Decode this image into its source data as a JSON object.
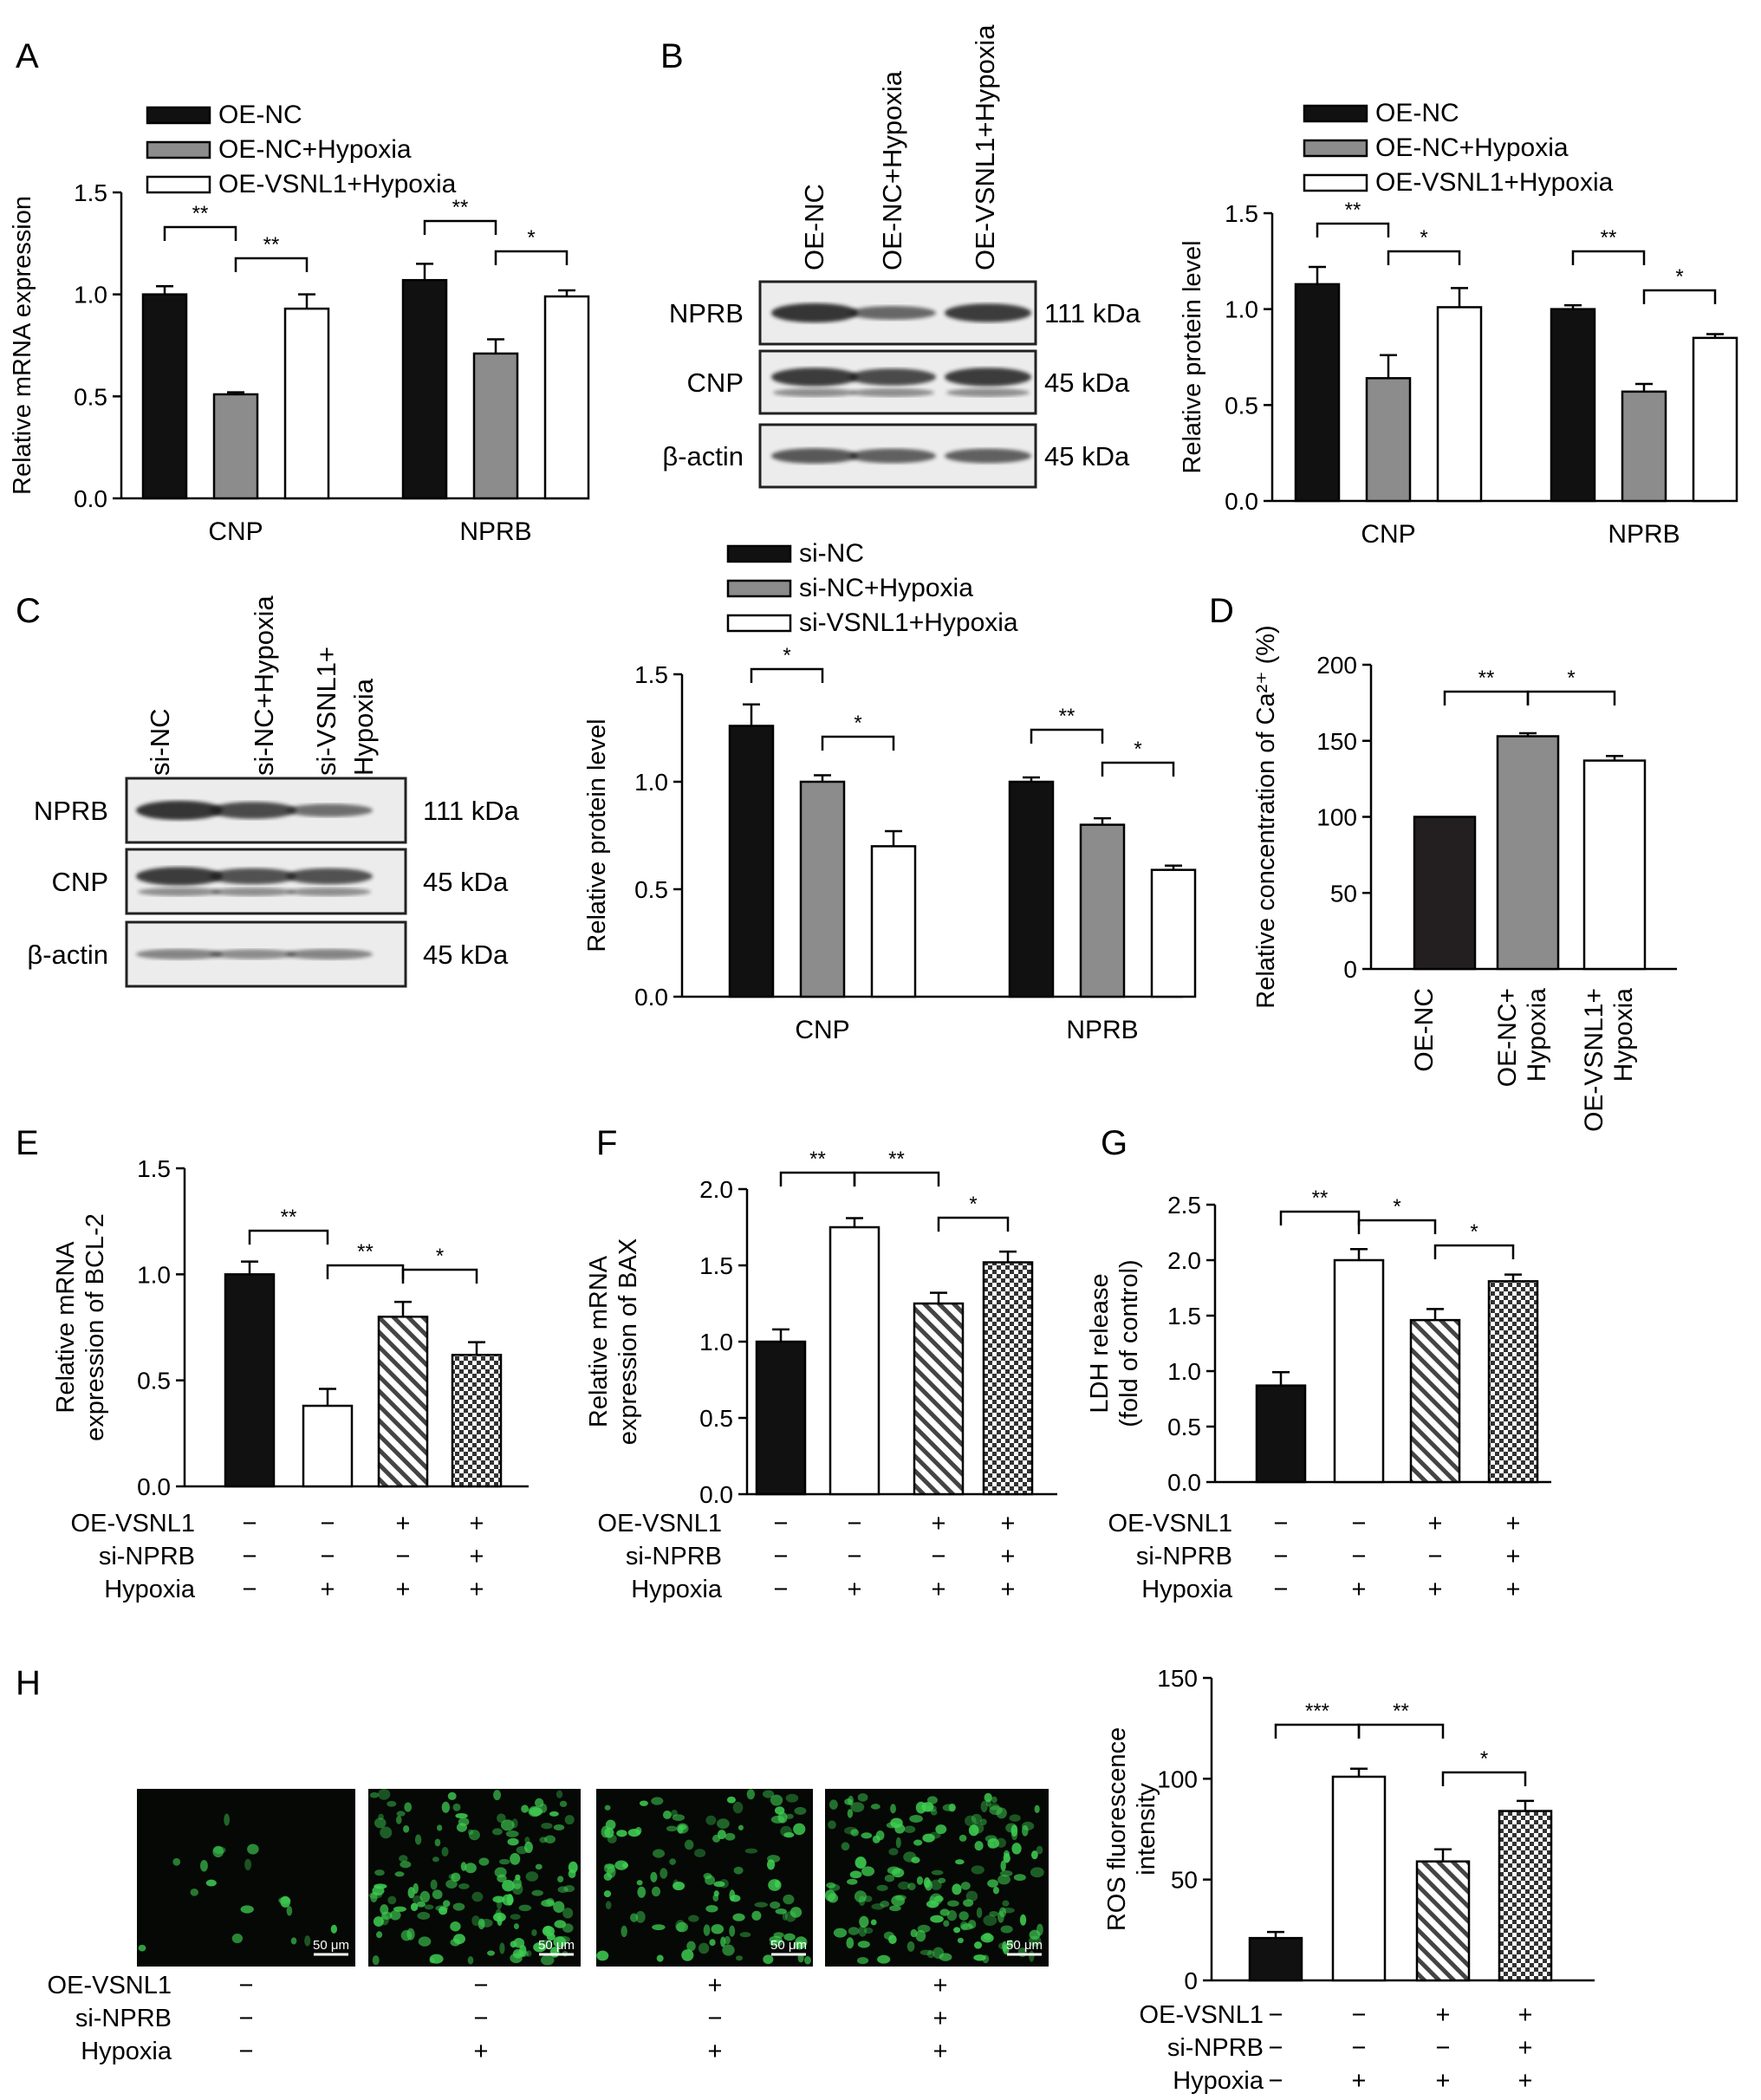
{
  "panels": [
    "A",
    "B",
    "C",
    "D",
    "E",
    "F",
    "G",
    "H"
  ],
  "colors": {
    "black": "#111111",
    "gray": "#8c8c8c",
    "white": "#ffffff",
    "dark": "#231f20",
    "green": "#3fcf52"
  },
  "chart_data": [
    {
      "panel": "A",
      "type": "bar",
      "ylabel": "Relative mRNA expression",
      "ylim": [
        0,
        1.5
      ],
      "yticks": [
        "0.0",
        "0.5",
        "1.0",
        "1.5"
      ],
      "categories": [
        "CNP",
        "NPRB"
      ],
      "legend": [
        "OE-NC",
        "OE-NC+Hypoxia",
        "OE-VSNL1+Hypoxia"
      ],
      "series": [
        {
          "name": "OE-NC",
          "values": [
            1.0,
            1.07
          ],
          "errors": [
            0.04,
            0.08
          ]
        },
        {
          "name": "OE-NC+Hypoxia",
          "values": [
            0.51,
            0.71
          ],
          "errors": [
            0.01,
            0.07
          ]
        },
        {
          "name": "OE-VSNL1+Hypoxia",
          "values": [
            0.93,
            0.99
          ],
          "errors": [
            0.07,
            0.03
          ]
        }
      ],
      "significance": [
        "**",
        "**",
        "**",
        "*"
      ]
    },
    {
      "panel": "B",
      "type": "bar",
      "ylabel": "Relative protein level",
      "ylim": [
        0,
        1.5
      ],
      "yticks": [
        "0.0",
        "0.5",
        "1.0",
        "1.5"
      ],
      "categories": [
        "CNP",
        "NPRB"
      ],
      "legend": [
        "OE-NC",
        "OE-NC+Hypoxia",
        "OE-VSNL1+Hypoxia"
      ],
      "series": [
        {
          "name": "OE-NC",
          "values": [
            1.13,
            1.0
          ],
          "errors": [
            0.09,
            0.02
          ]
        },
        {
          "name": "OE-NC+Hypoxia",
          "values": [
            0.64,
            0.57
          ],
          "errors": [
            0.12,
            0.04
          ]
        },
        {
          "name": "OE-VSNL1+Hypoxia",
          "values": [
            1.01,
            0.85
          ],
          "errors": [
            0.1,
            0.02
          ]
        }
      ],
      "significance": [
        "**",
        "*",
        "**",
        "*"
      ]
    },
    {
      "panel": "C",
      "type": "bar",
      "ylabel": "Relative protein level",
      "ylim": [
        0,
        1.5
      ],
      "yticks": [
        "0.0",
        "0.5",
        "1.0",
        "1.5"
      ],
      "categories": [
        "CNP",
        "NPRB"
      ],
      "legend": [
        "si-NC",
        "si-NC+Hypoxia",
        "si-VSNL1+Hypoxia"
      ],
      "series": [
        {
          "name": "si-NC",
          "values": [
            1.26,
            1.0
          ],
          "errors": [
            0.1,
            0.02
          ]
        },
        {
          "name": "si-NC+Hypoxia",
          "values": [
            1.0,
            0.8
          ],
          "errors": [
            0.03,
            0.03
          ]
        },
        {
          "name": "si-VSNL1+Hypoxia",
          "values": [
            0.7,
            0.59
          ],
          "errors": [
            0.07,
            0.02
          ]
        }
      ],
      "significance": [
        "*",
        "*",
        "**",
        "*"
      ]
    },
    {
      "panel": "D",
      "type": "bar",
      "ylabel": "Relative concentration of Ca²⁺ (%)",
      "ylim": [
        0,
        200
      ],
      "yticks": [
        "0",
        "50",
        "100",
        "150",
        "200"
      ],
      "categories": [
        "OE-NC",
        "OE-NC+ Hypoxia",
        "OE-VSNL1+ Hypoxia"
      ],
      "values": [
        100,
        153,
        137
      ],
      "errors": [
        0,
        2,
        3
      ],
      "significance": [
        "**",
        "*"
      ]
    },
    {
      "panel": "E",
      "type": "bar",
      "ylabel": [
        "Relative mRNA",
        "expression of BCL-2"
      ],
      "ylim": [
        0,
        1.5
      ],
      "yticks": [
        "0.0",
        "0.5",
        "1.0",
        "1.5"
      ],
      "values": [
        1.0,
        0.38,
        0.8,
        0.62
      ],
      "errors": [
        0.06,
        0.08,
        0.07,
        0.06
      ],
      "significance": [
        "**",
        "**",
        "*"
      ]
    },
    {
      "panel": "F",
      "type": "bar",
      "ylabel": [
        "Relative mRNA",
        "expression of BAX"
      ],
      "ylim": [
        0,
        2.0
      ],
      "yticks": [
        "0.0",
        "0.5",
        "1.0",
        "1.5",
        "2.0"
      ],
      "values": [
        1.0,
        1.75,
        1.25,
        1.52
      ],
      "errors": [
        0.08,
        0.06,
        0.07,
        0.07
      ],
      "significance": [
        "**",
        "**",
        "*"
      ]
    },
    {
      "panel": "G",
      "type": "bar",
      "ylabel": [
        "LDH release",
        "(fold of control)"
      ],
      "ylim": [
        0,
        2.5
      ],
      "yticks": [
        "0.0",
        "0.5",
        "1.0",
        "1.5",
        "2.0",
        "2.5"
      ],
      "values": [
        0.87,
        2.0,
        1.46,
        1.81
      ],
      "errors": [
        0.12,
        0.1,
        0.1,
        0.06
      ],
      "significance": [
        "**",
        "*",
        "*"
      ]
    },
    {
      "panel": "H",
      "type": "bar",
      "ylabel": [
        "ROS fluorescence",
        "intensity"
      ],
      "ylim": [
        0,
        150
      ],
      "yticks": [
        "0",
        "50",
        "100",
        "150"
      ],
      "values": [
        21,
        101,
        59,
        84
      ],
      "errors": [
        3,
        4,
        6,
        5
      ],
      "significance": [
        "***",
        "**",
        "*"
      ]
    }
  ],
  "blots": {
    "B": {
      "lanes": [
        "OE-NC",
        "OE-NC+Hypoxia",
        "OE-VSNL1+Hypoxia"
      ],
      "proteins": [
        "NPRB",
        "CNP",
        "β-actin"
      ],
      "sizes": [
        "111 kDa",
        "45 kDa",
        "45 kDa"
      ]
    },
    "C": {
      "lanes": [
        "si-NC",
        "si-NC+Hypoxia",
        "si-VSNL1+",
        "Hypoxia"
      ],
      "proteins": [
        "NPRB",
        "CNP",
        "β-actin"
      ],
      "sizes": [
        "111 kDa",
        "45 kDa",
        "45 kDa"
      ]
    }
  },
  "conditions": {
    "labels": [
      "OE-VSNL1",
      "si-NPRB",
      "Hypoxia"
    ],
    "rows": [
      [
        "−",
        "−",
        "+",
        "+"
      ],
      [
        "−",
        "−",
        "−",
        "+"
      ],
      [
        "−",
        "+",
        "+",
        "+"
      ]
    ]
  },
  "scale_bar": "50 μm"
}
